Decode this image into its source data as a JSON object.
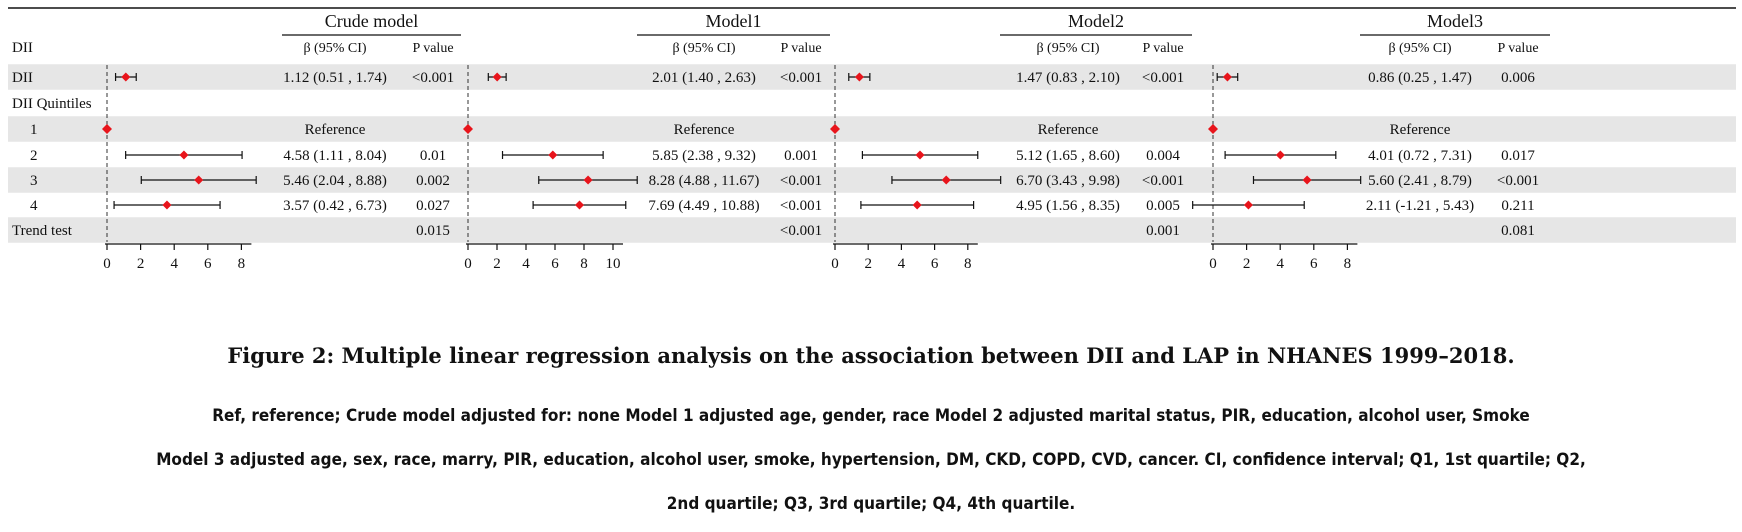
{
  "table": {
    "row_header": "DII",
    "beta_header": "β (95% CI)",
    "p_header": "P value",
    "rows": [
      {
        "label": "DII",
        "type": "data",
        "shade": true
      },
      {
        "label": "DII Quintiles",
        "type": "section",
        "shade": false
      },
      {
        "label": "1",
        "type": "reference",
        "shade": true
      },
      {
        "label": "2",
        "type": "data",
        "shade": false
      },
      {
        "label": "3",
        "type": "data",
        "shade": true
      },
      {
        "label": "4",
        "type": "data",
        "shade": false
      },
      {
        "label": "Trend test",
        "type": "trend",
        "shade": true
      }
    ],
    "reference_text": "Reference"
  },
  "chart_data": [
    {
      "type": "forest",
      "title": "Crude model",
      "x_ticks": [
        0,
        2,
        4,
        6,
        8
      ],
      "reference_line_x": 0,
      "rows": [
        {
          "row": "DII",
          "beta": 1.12,
          "lo": 0.51,
          "hi": 1.74,
          "ci_text": "1.12 (0.51 , 1.74)",
          "p": "<0.001"
        },
        {
          "row": "1",
          "beta": 0,
          "reference": true
        },
        {
          "row": "2",
          "beta": 4.58,
          "lo": 1.11,
          "hi": 8.04,
          "ci_text": "4.58 (1.11 , 8.04)",
          "p": "0.01"
        },
        {
          "row": "3",
          "beta": 5.46,
          "lo": 2.04,
          "hi": 8.88,
          "ci_text": "5.46 (2.04 , 8.88)",
          "p": "0.002"
        },
        {
          "row": "4",
          "beta": 3.57,
          "lo": 0.42,
          "hi": 6.73,
          "ci_text": "3.57 (0.42 , 6.73)",
          "p": "0.027"
        },
        {
          "row": "Trend test",
          "p": "0.015"
        }
      ]
    },
    {
      "type": "forest",
      "title": "Model1",
      "x_ticks": [
        0,
        2,
        4,
        6,
        8,
        10
      ],
      "reference_line_x": 0,
      "rows": [
        {
          "row": "DII",
          "beta": 2.01,
          "lo": 1.4,
          "hi": 2.63,
          "ci_text": "2.01 (1.40 , 2.63)",
          "p": "<0.001"
        },
        {
          "row": "1",
          "beta": 0,
          "reference": true
        },
        {
          "row": "2",
          "beta": 5.85,
          "lo": 2.38,
          "hi": 9.32,
          "ci_text": "5.85 (2.38 , 9.32)",
          "p": "0.001"
        },
        {
          "row": "3",
          "beta": 8.28,
          "lo": 4.88,
          "hi": 11.67,
          "ci_text": "8.28 (4.88 , 11.67)",
          "p": "<0.001"
        },
        {
          "row": "4",
          "beta": 7.69,
          "lo": 4.49,
          "hi": 10.88,
          "ci_text": "7.69 (4.49 , 10.88)",
          "p": "<0.001"
        },
        {
          "row": "Trend test",
          "p": "<0.001"
        }
      ]
    },
    {
      "type": "forest",
      "title": "Model2",
      "x_ticks": [
        0,
        2,
        4,
        6,
        8
      ],
      "reference_line_x": 0,
      "rows": [
        {
          "row": "DII",
          "beta": 1.47,
          "lo": 0.83,
          "hi": 2.1,
          "ci_text": "1.47 (0.83 , 2.10)",
          "p": "<0.001"
        },
        {
          "row": "1",
          "beta": 0,
          "reference": true
        },
        {
          "row": "2",
          "beta": 5.12,
          "lo": 1.65,
          "hi": 8.6,
          "ci_text": "5.12 (1.65 , 8.60)",
          "p": "0.004"
        },
        {
          "row": "3",
          "beta": 6.7,
          "lo": 3.43,
          "hi": 9.98,
          "ci_text": "6.70 (3.43 , 9.98)",
          "p": "<0.001"
        },
        {
          "row": "4",
          "beta": 4.95,
          "lo": 1.56,
          "hi": 8.35,
          "ci_text": "4.95 (1.56 , 8.35)",
          "p": "0.005"
        },
        {
          "row": "Trend test",
          "p": "0.001"
        }
      ]
    },
    {
      "type": "forest",
      "title": "Model3",
      "x_ticks": [
        0,
        2,
        4,
        6,
        8
      ],
      "reference_line_x": 0,
      "rows": [
        {
          "row": "DII",
          "beta": 0.86,
          "lo": 0.25,
          "hi": 1.47,
          "ci_text": "0.86 (0.25 , 1.47)",
          "p": "0.006"
        },
        {
          "row": "1",
          "beta": 0,
          "reference": true
        },
        {
          "row": "2",
          "beta": 4.01,
          "lo": 0.72,
          "hi": 7.31,
          "ci_text": "4.01 (0.72 , 7.31)",
          "p": "0.017"
        },
        {
          "row": "3",
          "beta": 5.6,
          "lo": 2.41,
          "hi": 8.79,
          "ci_text": "5.60 (2.41 , 8.79)",
          "p": "<0.001"
        },
        {
          "row": "4",
          "beta": 2.11,
          "lo": -1.21,
          "hi": 5.43,
          "ci_text": "2.11 (-1.21 , 5.43)",
          "p": "0.211"
        },
        {
          "row": "Trend test",
          "p": "0.081"
        }
      ]
    }
  ],
  "caption": {
    "title": "Figure 2: Multiple linear regression analysis on the association between DII and LAP in NHANES 1999–2018.",
    "line1": "Ref, reference; Crude model adjusted for: none Model 1 adjusted age, gender, race Model 2 adjusted marital status, PIR, education, alcohol user, Smoke",
    "line2": "Model 3 adjusted age, sex, race, marry, PIR, education, alcohol user, smoke, hypertension, DM, CKD, COPD, CVD, cancer. CI, confidence interval; Q1, 1st quartile; Q2,",
    "line3": "2nd quartile; Q3, 3rd quartile; Q4, 4th quartile."
  },
  "colors": {
    "shade": "#e6e6e6",
    "point": "#e8141b",
    "line": "#111111"
  }
}
